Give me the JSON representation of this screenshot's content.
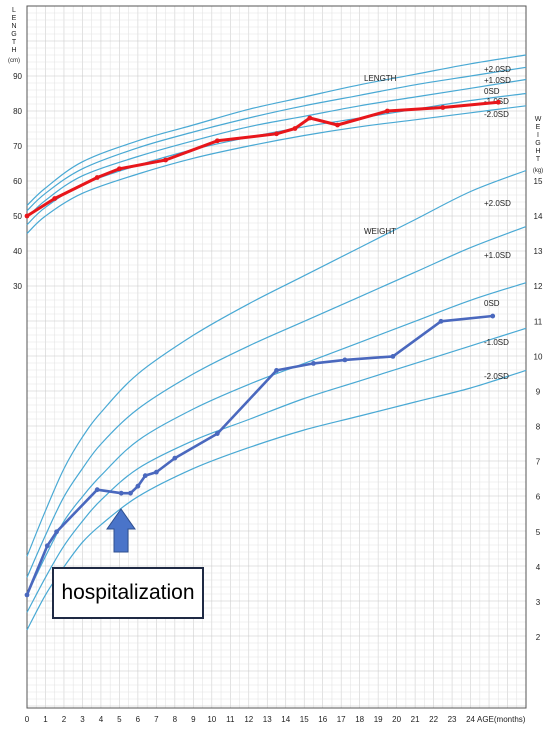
{
  "chart_data": {
    "type": "line",
    "title": "",
    "xlabel": "AGE(months)",
    "x_ticks": [
      0,
      1,
      2,
      3,
      4,
      5,
      6,
      7,
      8,
      9,
      10,
      11,
      12,
      13,
      14,
      15,
      16,
      17,
      18,
      19,
      20,
      21,
      22,
      23,
      24
    ],
    "x_range": [
      0,
      27
    ],
    "length_axis": {
      "label_chars": [
        "L",
        "E",
        "N",
        "G",
        "T",
        "H"
      ],
      "unit": "(cm)",
      "ticks": [
        30,
        40,
        50,
        60,
        70,
        80,
        90
      ],
      "range": [
        20,
        97
      ]
    },
    "weight_axis": {
      "label_chars": [
        "W",
        "E",
        "I",
        "G",
        "H",
        "T"
      ],
      "unit": "(kg)",
      "ticks": [
        2,
        3,
        4,
        5,
        6,
        7,
        8,
        9,
        10,
        11,
        12,
        13,
        14,
        15
      ],
      "range": [
        0,
        17
      ]
    },
    "colors": {
      "length_series": "#e8161b",
      "weight_series": "#4a68be",
      "reference_curve": "#49a9d4",
      "grid": "#d4d4d4"
    },
    "length_reference": {
      "group_label": "LENGTH",
      "curves": [
        {
          "label": "+2.0SD",
          "points": [
            [
              0,
              53
            ],
            [
              1,
              58
            ],
            [
              3,
              65.5
            ],
            [
              6,
              71.5
            ],
            [
              9,
              76
            ],
            [
              12,
              80.5
            ],
            [
              15,
              84
            ],
            [
              18,
              87.5
            ],
            [
              21,
              90.5
            ],
            [
              24,
              93.5
            ],
            [
              27,
              96
            ]
          ]
        },
        {
          "label": "+1.0SD",
          "points": [
            [
              0,
              51.5
            ],
            [
              1,
              56.5
            ],
            [
              3,
              63.5
            ],
            [
              6,
              69.5
            ],
            [
              9,
              74
            ],
            [
              12,
              78
            ],
            [
              15,
              81.5
            ],
            [
              18,
              84.5
            ],
            [
              21,
              87.5
            ],
            [
              24,
              90
            ],
            [
              27,
              92.5
            ]
          ]
        },
        {
          "label": "0SD",
          "points": [
            [
              0,
              49.5
            ],
            [
              1,
              54.5
            ],
            [
              3,
              61.5
            ],
            [
              6,
              67
            ],
            [
              9,
              71.5
            ],
            [
              12,
              75.5
            ],
            [
              15,
              78.5
            ],
            [
              18,
              81.5
            ],
            [
              21,
              84
            ],
            [
              24,
              86.5
            ],
            [
              27,
              89
            ]
          ]
        },
        {
          "label": "-1.0SD",
          "points": [
            [
              0,
              47.5
            ],
            [
              1,
              52.5
            ],
            [
              3,
              59
            ],
            [
              6,
              64.5
            ],
            [
              9,
              69
            ],
            [
              12,
              72.5
            ],
            [
              15,
              75.5
            ],
            [
              18,
              78
            ],
            [
              21,
              80.5
            ],
            [
              24,
              83
            ],
            [
              27,
              85
            ]
          ]
        },
        {
          "label": "-2.0SD",
          "points": [
            [
              0,
              45
            ],
            [
              1,
              50
            ],
            [
              3,
              56.5
            ],
            [
              6,
              62
            ],
            [
              9,
              66.5
            ],
            [
              12,
              70
            ],
            [
              15,
              73
            ],
            [
              18,
              75.5
            ],
            [
              21,
              77.5
            ],
            [
              24,
              79.5
            ],
            [
              27,
              81.5
            ]
          ]
        }
      ]
    },
    "weight_reference": {
      "group_label": "WEIGHT",
      "curves": [
        {
          "label": "+2.0SD",
          "points": [
            [
              0,
              4.3
            ],
            [
              1,
              5.6
            ],
            [
              2,
              6.8
            ],
            [
              3,
              7.7
            ],
            [
              4,
              8.4
            ],
            [
              6,
              9.5
            ],
            [
              9,
              10.6
            ],
            [
              12,
              11.5
            ],
            [
              15,
              12.3
            ],
            [
              18,
              13.1
            ],
            [
              21,
              13.9
            ],
            [
              24,
              14.7
            ],
            [
              27,
              15.3
            ]
          ]
        },
        {
          "label": "+1.0SD",
          "points": [
            [
              0,
              3.7
            ],
            [
              1,
              4.9
            ],
            [
              2,
              6
            ],
            [
              3,
              6.8
            ],
            [
              4,
              7.5
            ],
            [
              6,
              8.5
            ],
            [
              9,
              9.5
            ],
            [
              12,
              10.3
            ],
            [
              15,
              11
            ],
            [
              18,
              11.7
            ],
            [
              21,
              12.4
            ],
            [
              24,
              13.1
            ],
            [
              27,
              13.7
            ]
          ]
        },
        {
          "label": "0SD",
          "points": [
            [
              0,
              3.2
            ],
            [
              1,
              4.3
            ],
            [
              2,
              5.3
            ],
            [
              3,
              6
            ],
            [
              4,
              6.6
            ],
            [
              6,
              7.6
            ],
            [
              9,
              8.5
            ],
            [
              12,
              9.2
            ],
            [
              15,
              9.8
            ],
            [
              18,
              10.4
            ],
            [
              21,
              11
            ],
            [
              24,
              11.6
            ],
            [
              27,
              12.1
            ]
          ]
        },
        {
          "label": "-1.0SD",
          "points": [
            [
              0,
              2.7
            ],
            [
              1,
              3.7
            ],
            [
              2,
              4.6
            ],
            [
              3,
              5.3
            ],
            [
              4,
              5.9
            ],
            [
              6,
              6.8
            ],
            [
              9,
              7.6
            ],
            [
              12,
              8.2
            ],
            [
              15,
              8.8
            ],
            [
              18,
              9.3
            ],
            [
              21,
              9.8
            ],
            [
              24,
              10.3
            ],
            [
              27,
              10.8
            ]
          ]
        },
        {
          "label": "-2.0SD",
          "points": [
            [
              0,
              2.2
            ],
            [
              1,
              3.2
            ],
            [
              2,
              4
            ],
            [
              3,
              4.7
            ],
            [
              4,
              5.2
            ],
            [
              6,
              6
            ],
            [
              9,
              6.8
            ],
            [
              12,
              7.4
            ],
            [
              15,
              7.9
            ],
            [
              18,
              8.3
            ],
            [
              21,
              8.7
            ],
            [
              24,
              9.1
            ],
            [
              27,
              9.6
            ]
          ]
        }
      ]
    },
    "length_series": [
      [
        0,
        50
      ],
      [
        1.5,
        55
      ],
      [
        3.8,
        61
      ],
      [
        5,
        63.5
      ],
      [
        7.5,
        66
      ],
      [
        10.3,
        71.5
      ],
      [
        13.5,
        73.5
      ],
      [
        14.5,
        75
      ],
      [
        15.3,
        78
      ],
      [
        16.8,
        76
      ],
      [
        19.5,
        80
      ],
      [
        22.5,
        81
      ],
      [
        25.5,
        82.5
      ]
    ],
    "weight_series": [
      [
        0,
        3.2
      ],
      [
        1.1,
        4.6
      ],
      [
        1.6,
        5
      ],
      [
        3.8,
        6.2
      ],
      [
        5.1,
        6.1
      ],
      [
        5.6,
        6.1
      ],
      [
        6,
        6.3
      ],
      [
        6.4,
        6.6
      ],
      [
        7,
        6.7
      ],
      [
        8,
        7.1
      ],
      [
        10.3,
        7.8
      ],
      [
        13.5,
        9.6
      ],
      [
        15.5,
        9.8
      ],
      [
        17.2,
        9.9
      ],
      [
        19.8,
        10
      ],
      [
        22.4,
        11
      ],
      [
        25.2,
        11.15
      ]
    ],
    "annotation": {
      "text": "hospitalization"
    }
  }
}
